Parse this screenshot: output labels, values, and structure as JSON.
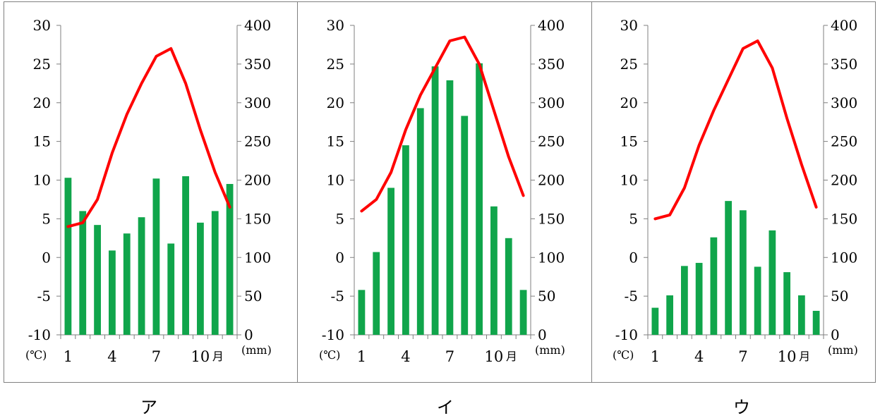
{
  "chart_data": [
    {
      "type": "bar+line",
      "caption": "ア",
      "months": [
        1,
        2,
        3,
        4,
        5,
        6,
        7,
        8,
        9,
        10,
        11,
        12
      ],
      "x_tick_labels": [
        "1",
        "4",
        "7",
        "10"
      ],
      "x_unit": "月",
      "left_axis": {
        "unit": "(℃)",
        "ylim": [
          -10,
          30
        ],
        "ticks": [
          "30",
          "25",
          "20",
          "15",
          "10",
          "5",
          "0",
          "-5",
          "-10"
        ]
      },
      "right_axis": {
        "unit": "(mm)",
        "ylim": [
          0,
          400
        ],
        "ticks": [
          "400",
          "350",
          "300",
          "250",
          "200",
          "150",
          "100",
          "50",
          "0"
        ]
      },
      "temperature": [
        4,
        4.5,
        7.5,
        13.5,
        18.5,
        22.5,
        26,
        27,
        22.5,
        16.5,
        11,
        6.5
      ],
      "precipitation": [
        203,
        160,
        142,
        109,
        131,
        152,
        202,
        118,
        205,
        145,
        160,
        195
      ]
    },
    {
      "type": "bar+line",
      "caption": "イ",
      "months": [
        1,
        2,
        3,
        4,
        5,
        6,
        7,
        8,
        9,
        10,
        11,
        12
      ],
      "x_tick_labels": [
        "1",
        "4",
        "7",
        "10"
      ],
      "x_unit": "月",
      "left_axis": {
        "unit": "(℃)",
        "ylim": [
          -10,
          30
        ],
        "ticks": [
          "30",
          "25",
          "20",
          "15",
          "10",
          "5",
          "0",
          "-5",
          "-10"
        ]
      },
      "right_axis": {
        "unit": "(mm)",
        "ylim": [
          0,
          400
        ],
        "ticks": [
          "400",
          "350",
          "300",
          "250",
          "200",
          "150",
          "100",
          "50",
          "0"
        ]
      },
      "temperature": [
        6,
        7.5,
        11,
        16.5,
        21,
        24.5,
        28,
        28.5,
        25,
        19,
        13,
        8
      ],
      "precipitation": [
        58,
        107,
        190,
        245,
        293,
        347,
        329,
        283,
        351,
        166,
        125,
        58
      ]
    },
    {
      "type": "bar+line",
      "caption": "ウ",
      "months": [
        1,
        2,
        3,
        4,
        5,
        6,
        7,
        8,
        9,
        10,
        11,
        12
      ],
      "x_tick_labels": [
        "1",
        "4",
        "7",
        "10"
      ],
      "x_unit": "月",
      "left_axis": {
        "unit": "(℃)",
        "ylim": [
          -10,
          30
        ],
        "ticks": [
          "30",
          "25",
          "20",
          "15",
          "10",
          "5",
          "0",
          "-5",
          "-10"
        ]
      },
      "right_axis": {
        "unit": "(mm)",
        "ylim": [
          0,
          400
        ],
        "ticks": [
          "400",
          "350",
          "300",
          "250",
          "200",
          "150",
          "100",
          "50",
          "0"
        ]
      },
      "temperature": [
        5,
        5.5,
        9,
        14.5,
        19,
        23,
        27,
        28,
        24.5,
        18,
        12,
        6.5
      ],
      "precipitation": [
        35,
        51,
        89,
        93,
        126,
        173,
        161,
        88,
        135,
        81,
        51,
        31
      ]
    }
  ],
  "colors": {
    "bars": "#10a54b",
    "line": "#ff0000",
    "axis": "#7f7f7f",
    "border": "#808080"
  }
}
